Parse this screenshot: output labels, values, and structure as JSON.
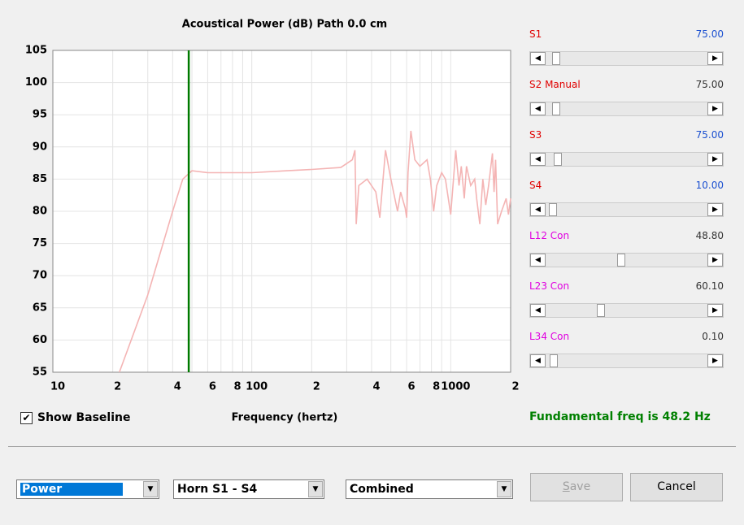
{
  "chart_data": {
    "type": "line",
    "title": "Acoustical Power (dB)   Path 0.0 cm",
    "x_label": "Frequency (hertz)",
    "x_log": true,
    "x": [
      21.6,
      30,
      40,
      45,
      50,
      60,
      80,
      100,
      150,
      200,
      280,
      320,
      330,
      335,
      345,
      380,
      420,
      440,
      470,
      500,
      540,
      560,
      590,
      600,
      610,
      630,
      660,
      700,
      760,
      790,
      820,
      850,
      900,
      940,
      1000,
      1060,
      1100,
      1130,
      1170,
      1200,
      1260,
      1320,
      1350,
      1400,
      1450,
      1500,
      1550,
      1620,
      1650,
      1680,
      1720,
      1800,
      1900,
      1950,
      2000
    ],
    "series": [
      {
        "color": "#f4b4b4",
        "values": [
          55,
          67,
          80,
          85,
          86.3,
          86,
          86,
          86,
          86.3,
          86.5,
          86.8,
          88,
          89.5,
          78,
          84,
          85,
          83,
          79,
          89.5,
          85,
          80,
          83,
          80.5,
          79,
          86,
          92.5,
          88,
          87,
          88,
          85,
          80,
          84,
          86,
          85,
          79.5,
          89.5,
          84,
          87,
          82,
          87,
          84,
          85,
          82,
          78,
          85,
          81,
          84,
          89,
          83,
          88,
          78,
          80,
          82,
          79.5,
          82
        ]
      }
    ],
    "xlim": [
      10,
      2000
    ],
    "xticks": [
      10,
      {
        "value": 20,
        "label": "2"
      },
      {
        "value": 40,
        "label": "4"
      },
      {
        "value": 60,
        "label": "6"
      },
      {
        "value": 80,
        "label": "8"
      },
      100,
      {
        "value": 200,
        "label": "2"
      },
      {
        "value": 400,
        "label": "4"
      },
      {
        "value": 600,
        "label": "6"
      },
      {
        "value": 800,
        "label": "8"
      },
      1000,
      {
        "value": 2000,
        "label": "2"
      }
    ],
    "xminor": [
      30,
      50,
      70,
      90,
      300,
      500,
      700,
      900
    ],
    "ylim": [
      55,
      105
    ],
    "yticks": [
      55,
      60,
      65,
      70,
      75,
      80,
      85,
      90,
      95,
      100,
      105
    ],
    "grid": true,
    "marker_x": 48.2,
    "marker_color": "#007a00"
  },
  "sliders": [
    {
      "label": "S1",
      "value": "75.00"
    },
    {
      "label": "S2 Manual",
      "value": "75.00"
    },
    {
      "label": "S3",
      "value": "75.00"
    },
    {
      "label": "S4",
      "value": "10.00"
    },
    {
      "label": "L12 Con",
      "value": "48.80"
    },
    {
      "label": "L23 Con",
      "value": "60.10"
    },
    {
      "label": "L34 Con",
      "value": "0.10"
    }
  ],
  "status": "Fundamental freq is 48.2 Hz",
  "checkbox": {
    "label": "Show Baseline",
    "checked": true
  },
  "dropdowns": [
    "Power",
    "Horn S1 - S4",
    "Combined"
  ],
  "buttons": {
    "save": "Save",
    "cancel": "Cancel"
  }
}
